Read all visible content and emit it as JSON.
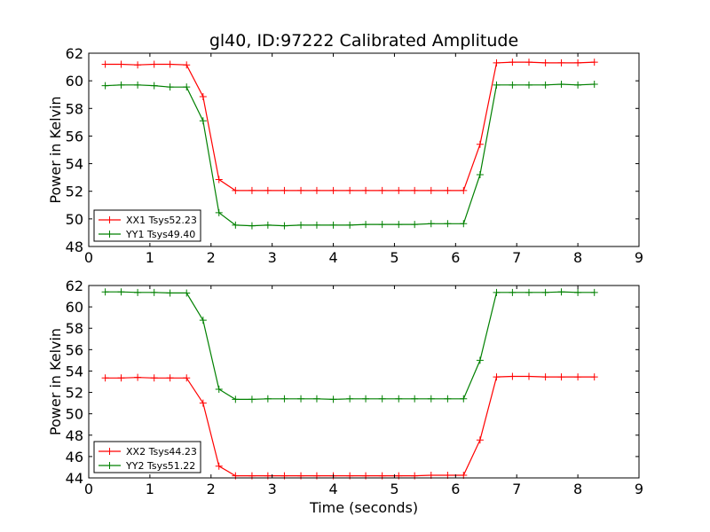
{
  "title": "gl40, ID:97222 Calibrated Amplitude",
  "chart_data": [
    {
      "type": "line",
      "ylabel": "Power in Kelvin",
      "xlabel": "",
      "xlim": [
        0,
        9
      ],
      "ylim": [
        48,
        62
      ],
      "xticks": [
        "0",
        "1",
        "2",
        "3",
        "4",
        "5",
        "6",
        "7",
        "8",
        "9"
      ],
      "yticks": [
        "48",
        "50",
        "52",
        "54",
        "56",
        "58",
        "60",
        "62"
      ],
      "legend_position": "lower-left",
      "x": [
        0.27,
        0.53,
        0.8,
        1.07,
        1.33,
        1.6,
        1.87,
        2.13,
        2.4,
        2.67,
        2.93,
        3.2,
        3.47,
        3.73,
        4.0,
        4.27,
        4.53,
        4.8,
        5.07,
        5.33,
        5.6,
        5.87,
        6.13,
        6.4,
        6.67,
        6.93,
        7.2,
        7.47,
        7.73,
        8.0,
        8.27
      ],
      "series": [
        {
          "name": "XX1 Tsys52.23",
          "color": "#ff0000",
          "values": [
            61.2,
            61.2,
            61.15,
            61.2,
            61.2,
            61.15,
            58.85,
            52.85,
            52.05,
            52.05,
            52.05,
            52.05,
            52.05,
            52.05,
            52.05,
            52.05,
            52.05,
            52.05,
            52.05,
            52.05,
            52.05,
            52.05,
            52.05,
            55.4,
            61.3,
            61.35,
            61.35,
            61.3,
            61.3,
            61.3,
            61.35
          ]
        },
        {
          "name": "YY1 Tsys49.40",
          "color": "#008000",
          "values": [
            59.65,
            59.7,
            59.7,
            59.65,
            59.55,
            59.55,
            57.1,
            50.45,
            49.55,
            49.5,
            49.55,
            49.5,
            49.55,
            49.55,
            49.55,
            49.55,
            49.6,
            49.6,
            49.6,
            49.6,
            49.65,
            49.65,
            49.65,
            53.2,
            59.7,
            59.7,
            59.7,
            59.7,
            59.75,
            59.7,
            59.75
          ]
        }
      ]
    },
    {
      "type": "line",
      "ylabel": "Power in Kelvin",
      "xlabel": "Time (seconds)",
      "xlim": [
        0,
        9
      ],
      "ylim": [
        44,
        62
      ],
      "xticks": [
        "0",
        "1",
        "2",
        "3",
        "4",
        "5",
        "6",
        "7",
        "8",
        "9"
      ],
      "yticks": [
        "44",
        "46",
        "48",
        "50",
        "52",
        "54",
        "56",
        "58",
        "60",
        "62"
      ],
      "legend_position": "lower-left",
      "x": [
        0.27,
        0.53,
        0.8,
        1.07,
        1.33,
        1.6,
        1.87,
        2.13,
        2.4,
        2.67,
        2.93,
        3.2,
        3.47,
        3.73,
        4.0,
        4.27,
        4.53,
        4.8,
        5.07,
        5.33,
        5.6,
        5.87,
        6.13,
        6.4,
        6.67,
        6.93,
        7.2,
        7.47,
        7.73,
        8.0,
        8.27
      ],
      "series": [
        {
          "name": "XX2 Tsys44.23",
          "color": "#ff0000",
          "values": [
            53.35,
            53.35,
            53.4,
            53.35,
            53.35,
            53.35,
            51.0,
            45.1,
            44.2,
            44.2,
            44.2,
            44.2,
            44.2,
            44.2,
            44.2,
            44.2,
            44.2,
            44.2,
            44.2,
            44.2,
            44.25,
            44.25,
            44.25,
            47.55,
            53.45,
            53.5,
            53.5,
            53.45,
            53.45,
            53.45,
            53.45
          ]
        },
        {
          "name": "YY2 Tsys51.22",
          "color": "#008000",
          "values": [
            61.4,
            61.4,
            61.35,
            61.35,
            61.3,
            61.3,
            58.75,
            52.3,
            51.35,
            51.35,
            51.4,
            51.4,
            51.4,
            51.4,
            51.35,
            51.4,
            51.4,
            51.4,
            51.4,
            51.4,
            51.4,
            51.4,
            51.4,
            55.0,
            61.35,
            61.35,
            61.35,
            61.35,
            61.4,
            61.35,
            61.35
          ]
        }
      ]
    }
  ]
}
